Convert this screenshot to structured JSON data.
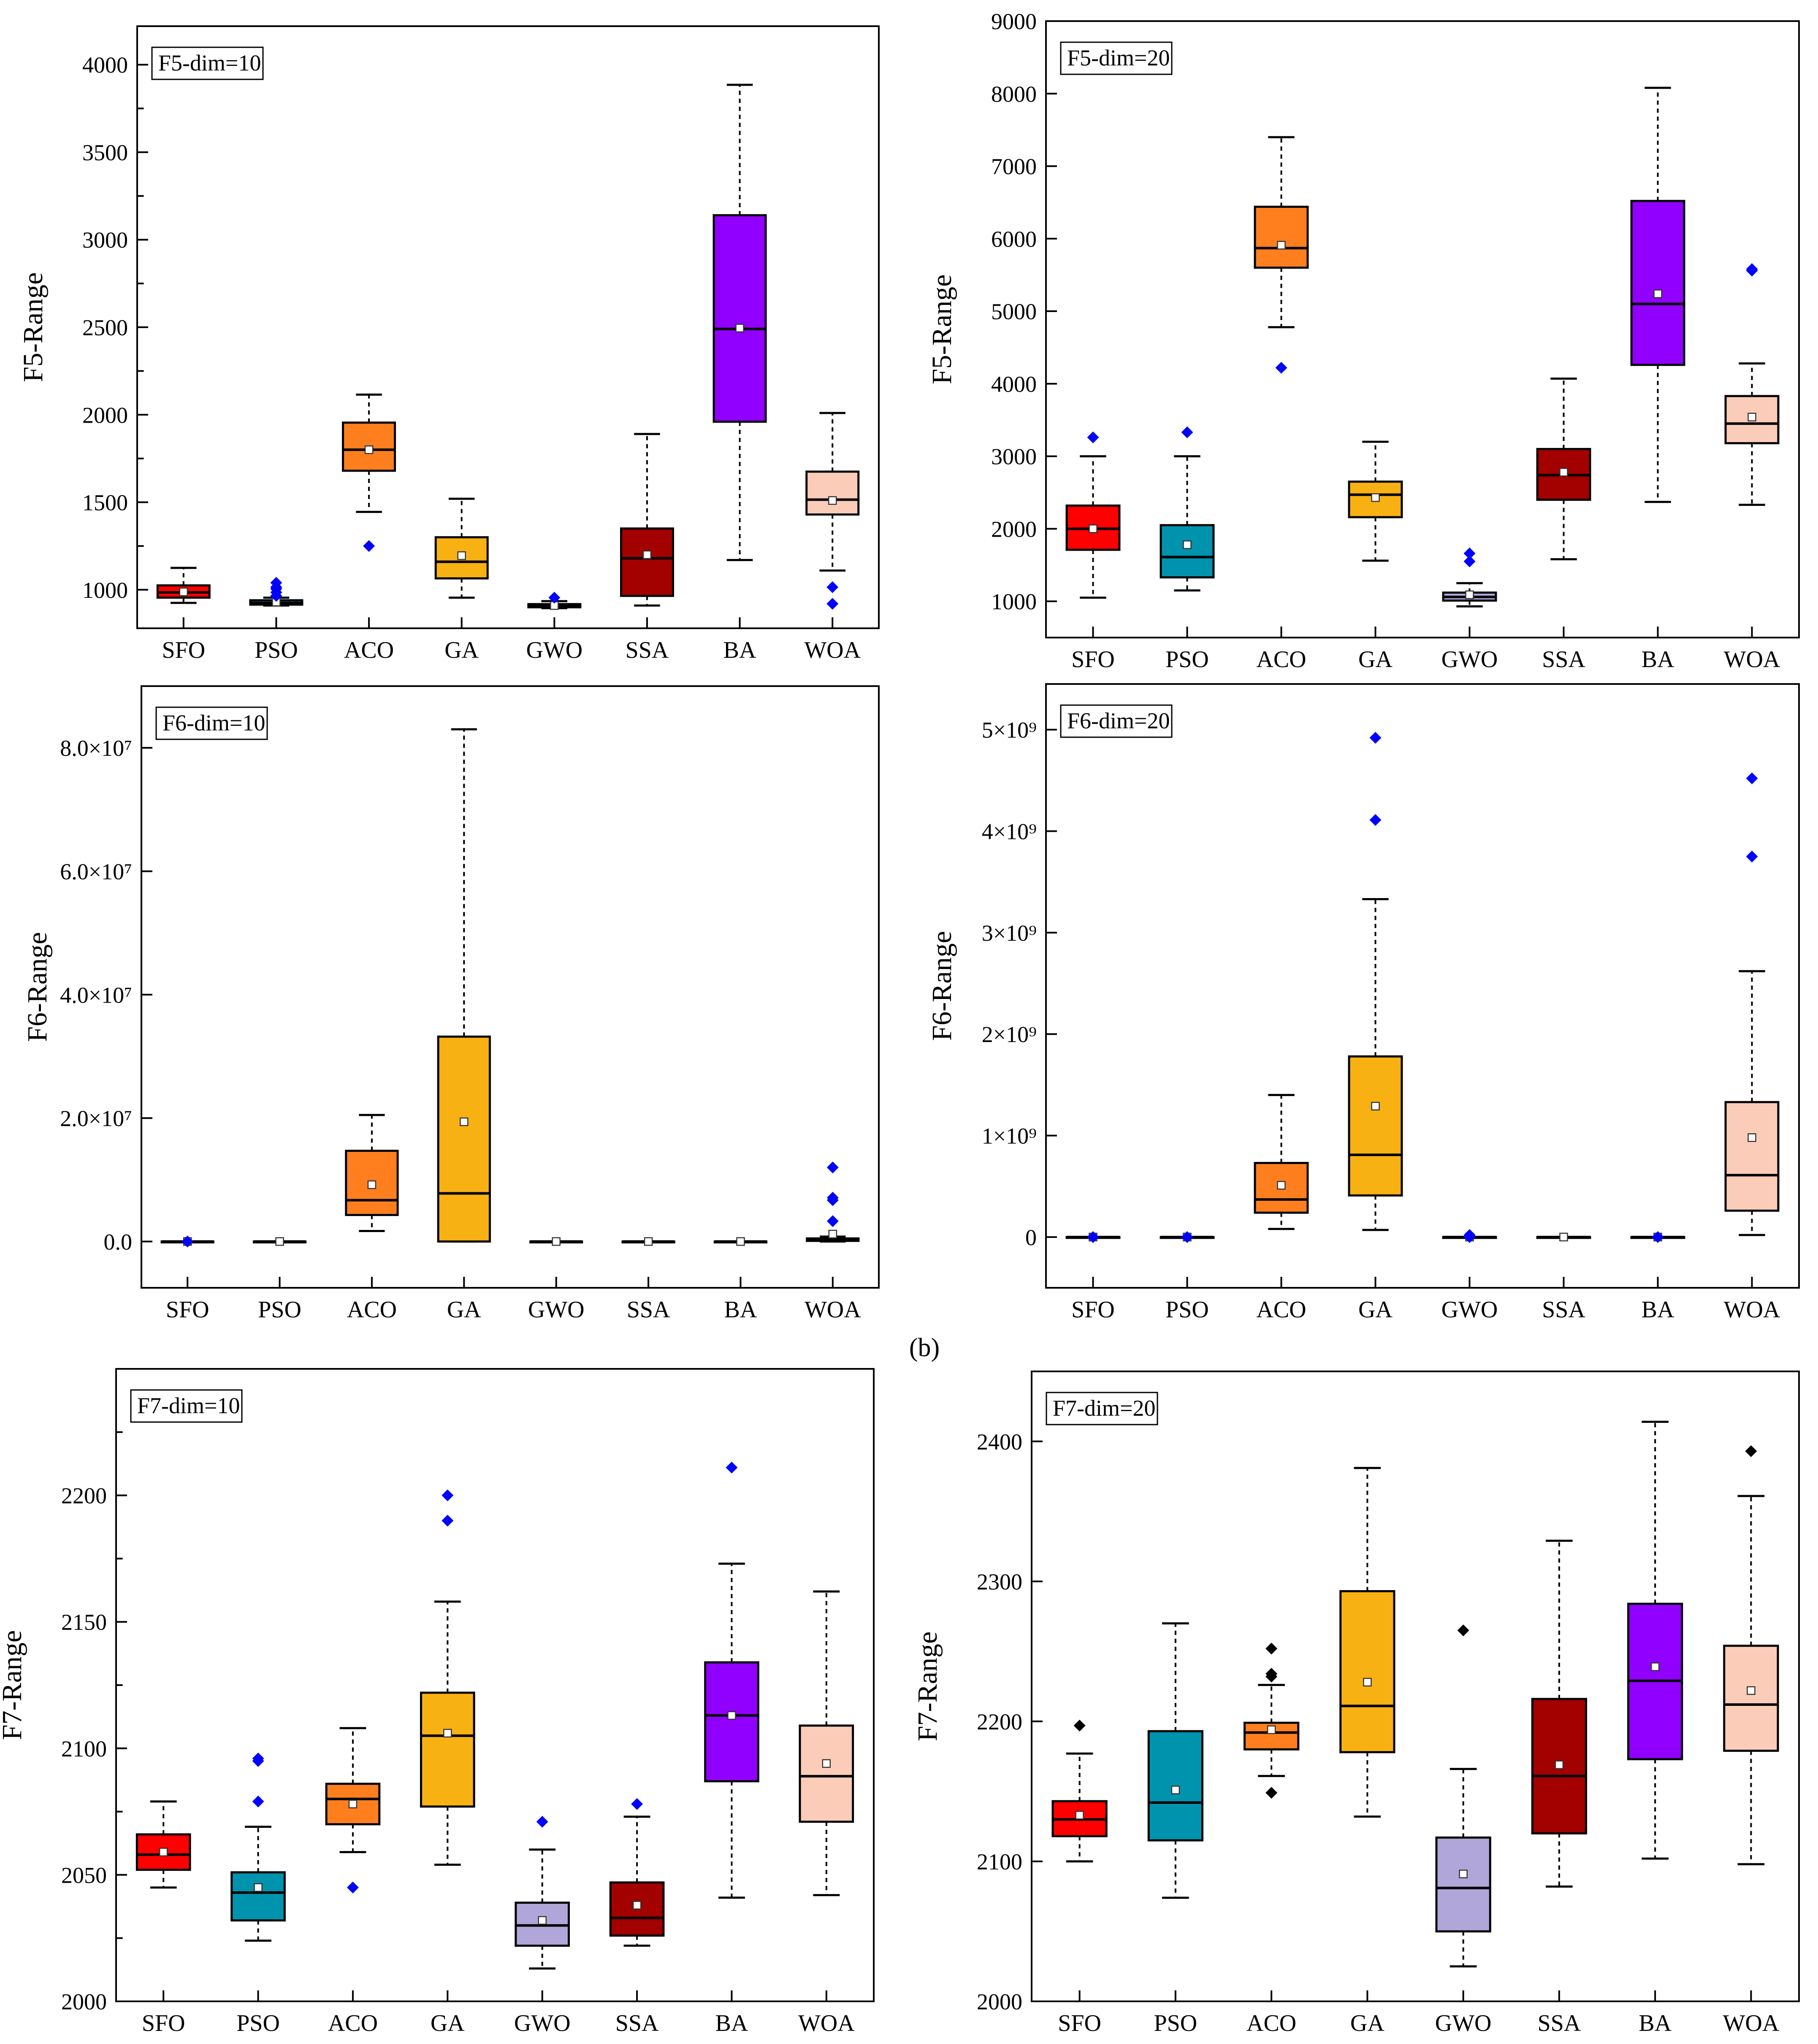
{
  "figure": {
    "panel_label": "(b)",
    "colors": {
      "SFO": "#ff0000",
      "PSO": "#0093ad",
      "ACO": "#ff7f1f",
      "GA": "#f8b113",
      "GWO": "#b0a6d9",
      "SSA": "#a30000",
      "BA": "#9100ff",
      "WOA": "#fbcdb9",
      "outlier_blue": "#0000ff",
      "outlier_black": "#000000"
    }
  },
  "chart_data": [
    {
      "id": "f5_10",
      "type": "box",
      "title": "F5-dim=10",
      "ylabel": "F5-Range",
      "ylim": [
        780,
        4220
      ],
      "yticks": [
        1000,
        1500,
        2000,
        2500,
        3000,
        3500,
        4000
      ],
      "ytick_labels": [
        "1000",
        "1500",
        "2000",
        "2500",
        "3000",
        "3500",
        "4000"
      ],
      "minor_ticks": true,
      "categories": [
        "SFO",
        "PSO",
        "ACO",
        "GA",
        "GWO",
        "SSA",
        "BA",
        "WOA"
      ],
      "boxes": [
        {
          "q1": 955,
          "median": 985,
          "q3": 1025,
          "whislo": 925,
          "whishi": 1125,
          "mean": 988,
          "outliers": []
        },
        {
          "q1": 915,
          "median": 925,
          "q3": 940,
          "whislo": 910,
          "whishi": 955,
          "mean": 930,
          "outliers": [
            965,
            985,
            1005,
            1015,
            1040
          ]
        },
        {
          "q1": 1680,
          "median": 1800,
          "q3": 1955,
          "whislo": 1445,
          "whishi": 2115,
          "mean": 1800,
          "outliers": [
            1250
          ]
        },
        {
          "q1": 1065,
          "median": 1160,
          "q3": 1300,
          "whislo": 955,
          "whishi": 1520,
          "mean": 1195,
          "outliers": []
        },
        {
          "q1": 900,
          "median": 907,
          "q3": 918,
          "whislo": 895,
          "whishi": 935,
          "mean": 910,
          "outliers": [
            955
          ]
        },
        {
          "q1": 965,
          "median": 1180,
          "q3": 1350,
          "whislo": 910,
          "whishi": 1890,
          "mean": 1200,
          "outliers": []
        },
        {
          "q1": 1960,
          "median": 2490,
          "q3": 3140,
          "whislo": 1170,
          "whishi": 3885,
          "mean": 2495,
          "outliers": []
        },
        {
          "q1": 1430,
          "median": 1515,
          "q3": 1675,
          "whislo": 1110,
          "whishi": 2010,
          "mean": 1510,
          "outliers": [
            1015,
            920
          ]
        }
      ]
    },
    {
      "id": "f5_20",
      "type": "box",
      "title": "F5-dim=20",
      "ylabel": "F5-Range",
      "ylim": [
        500,
        9000
      ],
      "yticks": [
        1000,
        2000,
        3000,
        4000,
        5000,
        6000,
        7000,
        8000,
        9000
      ],
      "ytick_labels": [
        "1000",
        "2000",
        "3000",
        "4000",
        "5000",
        "6000",
        "7000",
        "8000",
        "9000"
      ],
      "minor_ticks": false,
      "categories": [
        "SFO",
        "PSO",
        "ACO",
        "GA",
        "GWO",
        "SSA",
        "BA",
        "WOA"
      ],
      "boxes": [
        {
          "q1": 1710,
          "median": 2000,
          "q3": 2320,
          "whislo": 1050,
          "whishi": 3000,
          "mean": 2000,
          "outliers": [
            3260
          ]
        },
        {
          "q1": 1330,
          "median": 1610,
          "q3": 2050,
          "whislo": 1150,
          "whishi": 3000,
          "mean": 1780,
          "outliers": [
            3330
          ]
        },
        {
          "q1": 5600,
          "median": 5870,
          "q3": 6440,
          "whislo": 4780,
          "whishi": 7400,
          "mean": 5910,
          "outliers": [
            4220
          ]
        },
        {
          "q1": 2160,
          "median": 2470,
          "q3": 2650,
          "whislo": 1560,
          "whishi": 3200,
          "mean": 2430,
          "outliers": []
        },
        {
          "q1": 1010,
          "median": 1060,
          "q3": 1120,
          "whislo": 930,
          "whishi": 1250,
          "mean": 1090,
          "outliers": [
            1550,
            1660
          ]
        },
        {
          "q1": 2400,
          "median": 2740,
          "q3": 3100,
          "whislo": 1580,
          "whishi": 4070,
          "mean": 2780,
          "outliers": []
        },
        {
          "q1": 4260,
          "median": 5100,
          "q3": 6520,
          "whislo": 2370,
          "whishi": 8080,
          "mean": 5240,
          "outliers": []
        },
        {
          "q1": 3180,
          "median": 3450,
          "q3": 3830,
          "whislo": 2330,
          "whishi": 4280,
          "mean": 3540,
          "outliers": [
            5560,
            5580
          ]
        }
      ]
    },
    {
      "id": "f6_10",
      "type": "box",
      "title": "F6-dim=10",
      "ylabel": "F6-Range",
      "ylim": [
        -7500000,
        90000000
      ],
      "yticks": [
        0,
        20000000,
        40000000,
        60000000,
        80000000
      ],
      "ytick_labels": [
        "0.0",
        "2.0×10⁷",
        "4.0×10⁷",
        "6.0×10⁷",
        "8.0×10⁷"
      ],
      "minor_ticks": false,
      "categories": [
        "SFO",
        "PSO",
        "ACO",
        "GA",
        "GWO",
        "SSA",
        "BA",
        "WOA"
      ],
      "boxes": [
        {
          "q1": 0,
          "median": 0,
          "q3": 0,
          "whislo": 0,
          "whishi": 0,
          "mean": 0,
          "outliers": [
            0
          ]
        },
        {
          "q1": 0,
          "median": 0,
          "q3": 0,
          "whislo": 0,
          "whishi": 0,
          "mean": 0,
          "outliers": []
        },
        {
          "q1": 4300000,
          "median": 6700000,
          "q3": 14700000,
          "whislo": 1700000,
          "whishi": 20500000,
          "mean": 9200000,
          "outliers": []
        },
        {
          "q1": 0,
          "median": 7800000,
          "q3": 33200000,
          "whislo": 0,
          "whishi": 83000000,
          "mean": 19400000,
          "outliers": []
        },
        {
          "q1": 0,
          "median": 0,
          "q3": 0,
          "whislo": 0,
          "whishi": 0,
          "mean": 0,
          "outliers": []
        },
        {
          "q1": 0,
          "median": 0,
          "q3": 0,
          "whislo": 0,
          "whishi": 0,
          "mean": 0,
          "outliers": []
        },
        {
          "q1": 0,
          "median": 0,
          "q3": 0,
          "whislo": 0,
          "whishi": 0,
          "mean": 0,
          "outliers": []
        },
        {
          "q1": 100000,
          "median": 300000,
          "q3": 500000,
          "whislo": 0,
          "whishi": 800000,
          "mean": 1200000,
          "outliers": [
            3300000,
            6700000,
            7100000,
            12000000
          ]
        }
      ]
    },
    {
      "id": "f6_20",
      "type": "box",
      "title": "F6-dim=20",
      "ylabel": "F6-Range",
      "ylim": [
        -500000000,
        5450000000
      ],
      "yticks": [
        1000000000,
        2000000000,
        3000000000,
        4000000000,
        5000000000
      ],
      "ytick_labels": [
        "1×10⁹",
        "2×10⁹",
        "3×10⁹",
        "4×10⁹",
        "5×10⁹"
      ],
      "extra_ytick": {
        "value": 0,
        "label": "0"
      },
      "minor_ticks": false,
      "categories": [
        "SFO",
        "PSO",
        "ACO",
        "GA",
        "GWO",
        "SSA",
        "BA",
        "WOA"
      ],
      "boxes": [
        {
          "q1": 0,
          "median": 0,
          "q3": 0,
          "whislo": 0,
          "whishi": 0,
          "mean": 0,
          "outliers": [
            0
          ]
        },
        {
          "q1": 0,
          "median": 0,
          "q3": 0,
          "whislo": 0,
          "whishi": 0,
          "mean": 0,
          "outliers": [
            0
          ]
        },
        {
          "q1": 240000000,
          "median": 370000000,
          "q3": 730000000,
          "whislo": 80000000,
          "whishi": 1400000000,
          "mean": 510000000,
          "outliers": []
        },
        {
          "q1": 410000000,
          "median": 810000000,
          "q3": 1780000000,
          "whislo": 70000000,
          "whishi": 3330000000,
          "mean": 1290000000,
          "outliers": [
            4110000000,
            4920000000
          ]
        },
        {
          "q1": 0,
          "median": 0,
          "q3": 0,
          "whislo": 0,
          "whishi": 0,
          "mean": 0,
          "outliers": [
            0,
            20000000
          ]
        },
        {
          "q1": 0,
          "median": 0,
          "q3": 0,
          "whislo": 0,
          "whishi": 0,
          "mean": 0,
          "outliers": []
        },
        {
          "q1": 0,
          "median": 0,
          "q3": 0,
          "whislo": 0,
          "whishi": 0,
          "mean": 0,
          "outliers": [
            0
          ]
        },
        {
          "q1": 260000000,
          "median": 610000000,
          "q3": 1330000000,
          "whislo": 20000000,
          "whishi": 2620000000,
          "mean": 980000000,
          "outliers": [
            3750000000,
            4520000000
          ]
        }
      ]
    },
    {
      "id": "f7_10",
      "type": "box",
      "title": "F7-dim=10",
      "ylabel": "F7-Range",
      "ylim": [
        2000,
        2250
      ],
      "yticks": [
        2000,
        2050,
        2100,
        2150,
        2200
      ],
      "ytick_labels": [
        "2000",
        "2050",
        "2100",
        "2150",
        "2200"
      ],
      "minor_ticks": true,
      "categories": [
        "SFO",
        "PSO",
        "ACO",
        "GA",
        "GWO",
        "SSA",
        "BA",
        "WOA"
      ],
      "boxes": [
        {
          "q1": 2052,
          "median": 2058,
          "q3": 2066,
          "whislo": 2045,
          "whishi": 2079,
          "mean": 2059,
          "outliers": []
        },
        {
          "q1": 2032,
          "median": 2043,
          "q3": 2051,
          "whislo": 2024,
          "whishi": 2069,
          "mean": 2045,
          "outliers": [
            2079,
            2095,
            2096
          ]
        },
        {
          "q1": 2070,
          "median": 2080,
          "q3": 2086,
          "whislo": 2059,
          "whishi": 2108,
          "mean": 2078,
          "outliers": [
            2045
          ]
        },
        {
          "q1": 2077,
          "median": 2105,
          "q3": 2122,
          "whislo": 2054,
          "whishi": 2158,
          "mean": 2106,
          "outliers": [
            2190,
            2200
          ]
        },
        {
          "q1": 2022,
          "median": 2030,
          "q3": 2039,
          "whislo": 2013,
          "whishi": 2060,
          "mean": 2032,
          "outliers": [
            2071
          ]
        },
        {
          "q1": 2026,
          "median": 2033,
          "q3": 2047,
          "whislo": 2022,
          "whishi": 2073,
          "mean": 2038,
          "outliers": [
            2078
          ]
        },
        {
          "q1": 2087,
          "median": 2113,
          "q3": 2134,
          "whislo": 2041,
          "whishi": 2173,
          "mean": 2113,
          "outliers": [
            2211
          ]
        },
        {
          "q1": 2071,
          "median": 2089,
          "q3": 2109,
          "whislo": 2042,
          "whishi": 2162,
          "mean": 2094,
          "outliers": []
        }
      ]
    },
    {
      "id": "f7_20",
      "type": "box",
      "title": "F7-dim=20",
      "ylabel": "F7-Range",
      "ylim": [
        2000,
        2450
      ],
      "yticks": [
        2000,
        2100,
        2200,
        2300,
        2400
      ],
      "ytick_labels": [
        "2000",
        "2100",
        "2200",
        "2300",
        "2400"
      ],
      "minor_ticks": false,
      "categories": [
        "SFO",
        "PSO",
        "ACO",
        "GA",
        "GWO",
        "SSA",
        "BA",
        "WOA"
      ],
      "boxes": [
        {
          "q1": 2118,
          "median": 2130,
          "q3": 2143,
          "whislo": 2100,
          "whishi": 2177,
          "mean": 2133,
          "outliers": [
            2197
          ]
        },
        {
          "q1": 2115,
          "median": 2142,
          "q3": 2193,
          "whislo": 2074,
          "whishi": 2270,
          "mean": 2151,
          "outliers": []
        },
        {
          "q1": 2180,
          "median": 2192,
          "q3": 2199,
          "whislo": 2161,
          "whishi": 2226,
          "mean": 2194,
          "outliers": [
            2149,
            2232,
            2234,
            2252
          ]
        },
        {
          "q1": 2178,
          "median": 2211,
          "q3": 2293,
          "whislo": 2132,
          "whishi": 2381,
          "mean": 2228,
          "outliers": []
        },
        {
          "q1": 2050,
          "median": 2081,
          "q3": 2117,
          "whislo": 2025,
          "whishi": 2166,
          "mean": 2091,
          "outliers": [
            2265
          ]
        },
        {
          "q1": 2120,
          "median": 2161,
          "q3": 2216,
          "whislo": 2082,
          "whishi": 2329,
          "mean": 2169,
          "outliers": []
        },
        {
          "q1": 2173,
          "median": 2229,
          "q3": 2284,
          "whislo": 2102,
          "whishi": 2414,
          "mean": 2239,
          "outliers": []
        },
        {
          "q1": 2179,
          "median": 2212,
          "q3": 2254,
          "whislo": 2098,
          "whishi": 2361,
          "mean": 2222,
          "outliers": [
            2393
          ]
        }
      ]
    }
  ]
}
